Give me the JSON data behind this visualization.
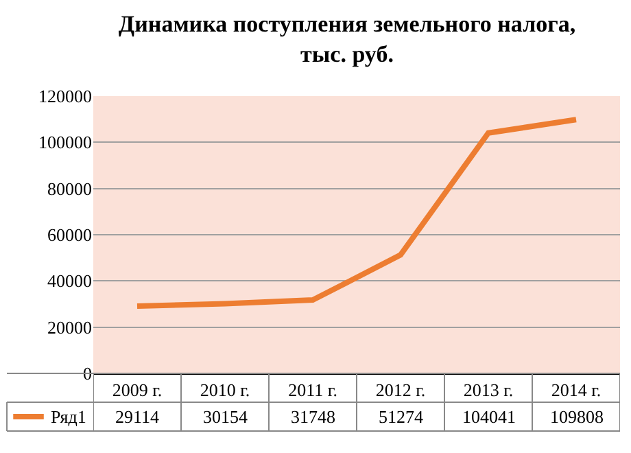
{
  "chart_data": {
    "type": "line",
    "title": "Динамика поступления земельного налога,\nтыс. руб.",
    "categories": [
      "2009 г.",
      "2010 г.",
      "2011 г.",
      "2012 г.",
      "2013 г.",
      "2014 г."
    ],
    "series": [
      {
        "name": "Ряд1",
        "color": "#ed7d31",
        "values": [
          29114,
          30154,
          31748,
          51274,
          104041,
          109808
        ]
      }
    ],
    "ylim": [
      0,
      120000
    ],
    "yticks": [
      0,
      20000,
      40000,
      60000,
      80000,
      100000,
      120000
    ],
    "grid": "y",
    "legend": "bottom",
    "data_labels": true,
    "marker": "none",
    "line_style": "solid"
  }
}
